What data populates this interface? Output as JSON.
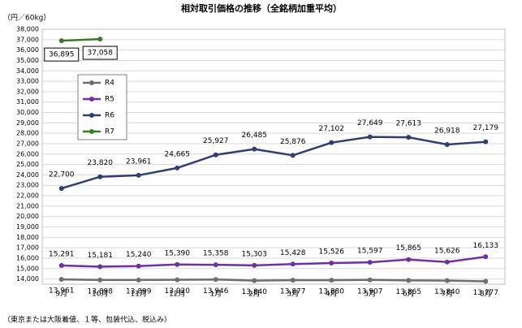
{
  "chart_data": {
    "type": "line",
    "title": "相対取引価格の推移（全銘柄加重平均）",
    "y_label": "（円／60kg）",
    "footnote": "（東京または大阪着値、１等、包装代込、税込み）",
    "categories": [
      "9月",
      "10月",
      "11月",
      "12月",
      "1月",
      "2月",
      "3月",
      "4月",
      "5月",
      "6月",
      "7月",
      "8月"
    ],
    "ylim": [
      13500,
      38000
    ],
    "yticks": [
      {
        "value": 14000,
        "label": "14,000"
      },
      {
        "value": 15000,
        "label": "15,000"
      },
      {
        "value": 16000,
        "label": "16,000"
      },
      {
        "value": 17000,
        "label": "17,000"
      },
      {
        "value": 18000,
        "label": "18,000"
      },
      {
        "value": 19000,
        "label": "19,000"
      },
      {
        "value": 20000,
        "label": "20,000"
      },
      {
        "value": 21000,
        "label": "21,000"
      },
      {
        "value": 22000,
        "label": "22,000"
      },
      {
        "value": 23000,
        "label": "23,000"
      },
      {
        "value": 24000,
        "label": "24,000"
      },
      {
        "value": 25000,
        "label": "25,000"
      },
      {
        "value": 26000,
        "label": "26,000"
      },
      {
        "value": 27000,
        "label": "27,000"
      },
      {
        "value": 28000,
        "label": "28,000"
      },
      {
        "value": 29000,
        "label": "29,000"
      },
      {
        "value": 30000,
        "label": "30,000"
      },
      {
        "value": 31000,
        "label": "31,000"
      },
      {
        "value": 32000,
        "label": "32,000"
      },
      {
        "value": 33000,
        "label": "33,000"
      },
      {
        "value": 34000,
        "label": "34,000"
      },
      {
        "value": 35000,
        "label": "35,000"
      },
      {
        "value": 36000,
        "label": "36,000"
      },
      {
        "value": 37000,
        "label": "37,000"
      },
      {
        "value": 38000,
        "label": "38,000"
      }
    ],
    "grid": true,
    "legend": "left",
    "series": [
      {
        "name": "R4",
        "color": "#6e6e6e",
        "values": [
          13961,
          13898,
          13899,
          13920,
          13946,
          13840,
          13877,
          13880,
          13907,
          13865,
          13840,
          13777
        ],
        "value_labels": [
          "13,961",
          "13,898",
          "13,899",
          "13,920",
          "13,946",
          "13,840",
          "13,877",
          "13,880",
          "13,907",
          "13,865",
          "13,840",
          "13,777"
        ]
      },
      {
        "name": "R5",
        "color": "#7030a0",
        "values": [
          15291,
          15181,
          15240,
          15390,
          15358,
          15303,
          15428,
          15526,
          15597,
          15865,
          15626,
          16133
        ],
        "value_labels": [
          "15,291",
          "15,181",
          "15,240",
          "15,390",
          "15,358",
          "15,303",
          "15,428",
          "15,526",
          "15,597",
          "15,865",
          "15,626",
          "16,133"
        ]
      },
      {
        "name": "R6",
        "color": "#2e3f6e",
        "values": [
          22700,
          23820,
          23961,
          24665,
          25927,
          26485,
          25876,
          27102,
          27649,
          27613,
          26918,
          27179
        ],
        "value_labels": [
          "22,700",
          "23,820",
          "23,961",
          "24,665",
          "25,927",
          "26,485",
          "25,876",
          "27,102",
          "27,649",
          "27,613",
          "26,918",
          "27,179"
        ]
      },
      {
        "name": "R7",
        "color": "#3b7a2a",
        "values": [
          36895,
          37058,
          null,
          null,
          null,
          null,
          null,
          null,
          null,
          null,
          null,
          null
        ],
        "value_labels": [
          "36,895",
          "37,058",
          null,
          null,
          null,
          null,
          null,
          null,
          null,
          null,
          null,
          null
        ]
      }
    ]
  }
}
